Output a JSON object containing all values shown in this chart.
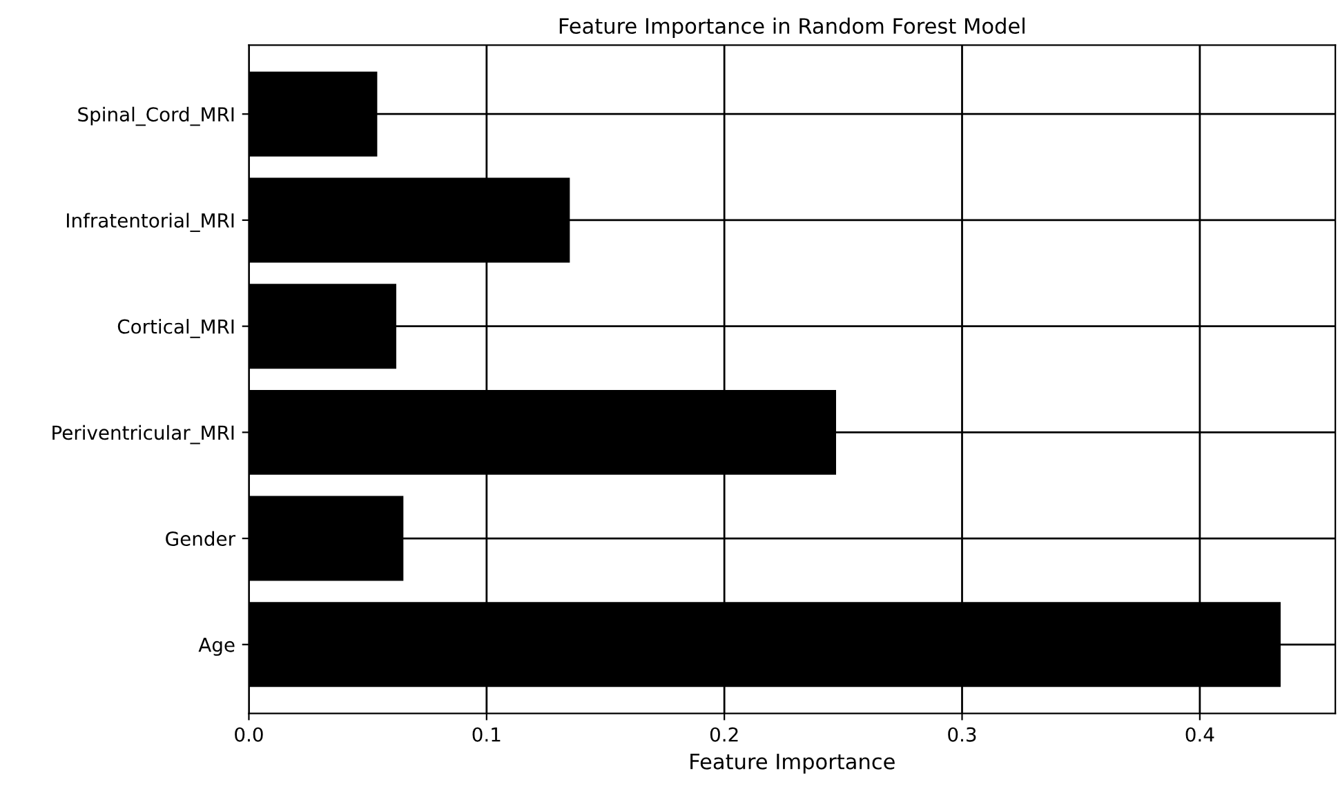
{
  "chart_data": {
    "type": "bar",
    "orientation": "horizontal",
    "title": "Feature Importance in Random Forest Model",
    "xlabel": "Feature Importance",
    "categories": [
      "Spinal_Cord_MRI",
      "Infratentorial_MRI",
      "Cortical_MRI",
      "Periventricular_MRI",
      "Gender",
      "Age"
    ],
    "values": [
      0.054,
      0.135,
      0.062,
      0.247,
      0.065,
      0.434
    ],
    "color": "#000000",
    "xlim": [
      0,
      0.457
    ],
    "xticks": [
      {
        "value": 0,
        "label": "0.0"
      },
      0.1,
      0.2,
      0.3,
      0.4
    ],
    "grid": true
  }
}
